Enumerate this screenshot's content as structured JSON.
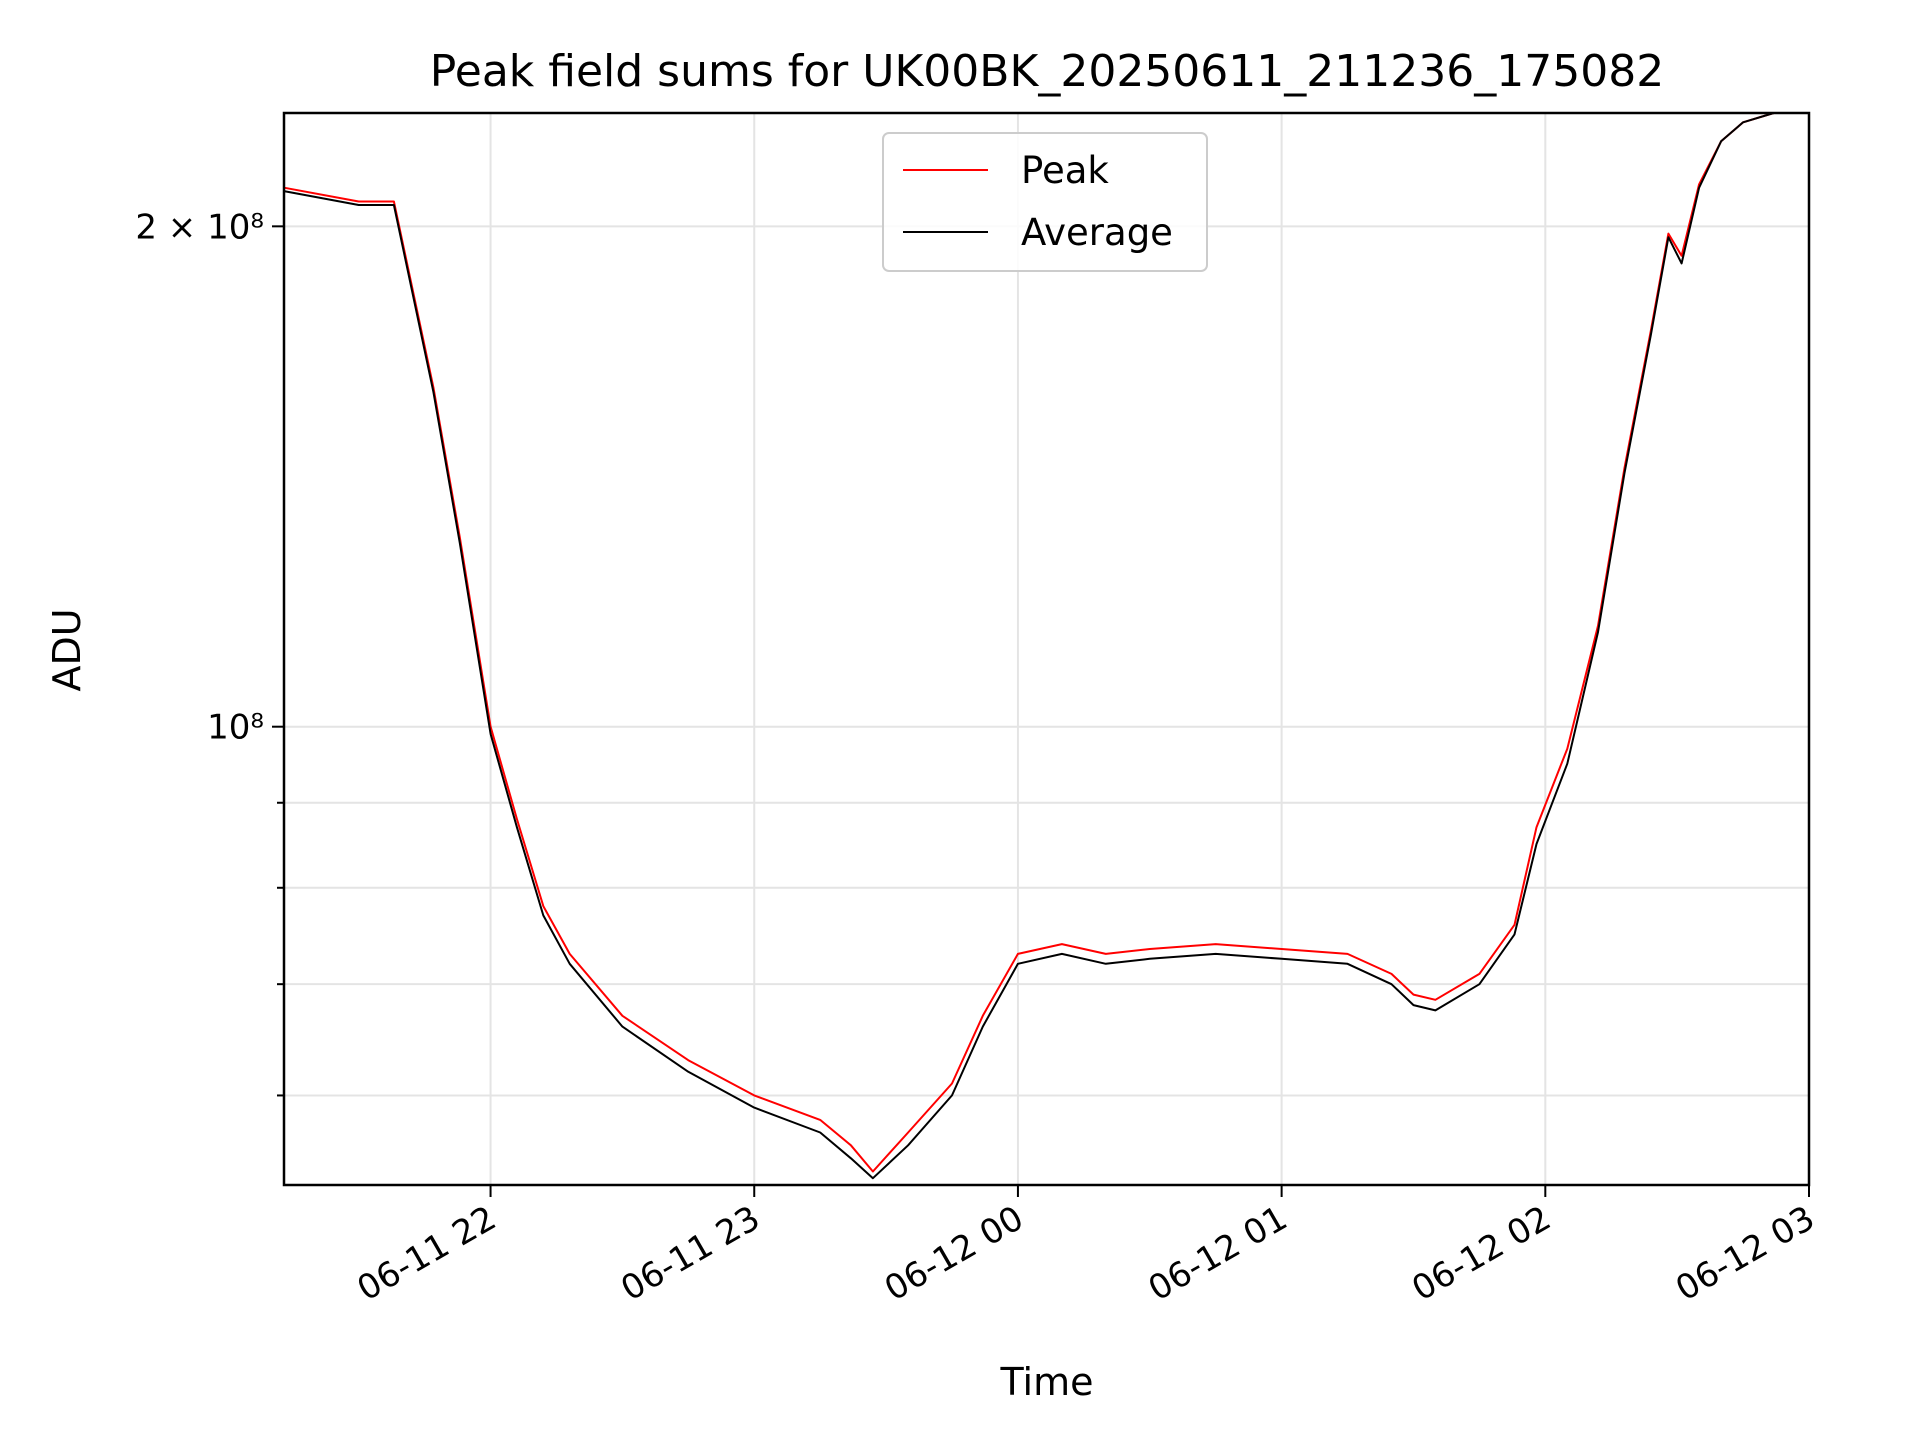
{
  "chart_data": {
    "type": "line",
    "title": "Peak field sums for UK00BK_20250611_211236_175082",
    "xlabel": "Time",
    "ylabel": "ADU",
    "yscale": "log",
    "xlim": [
      "2025-06-11 21:13",
      "2025-06-12 03:00"
    ],
    "ylim": [
      53000000,
      234000000
    ],
    "grid": true,
    "legend_position": "top-center",
    "x_ticks": [
      {
        "value": "2025-06-11 22:00",
        "label": "06-11 22"
      },
      {
        "value": "2025-06-11 23:00",
        "label": "06-11 23"
      },
      {
        "value": "2025-06-12 00:00",
        "label": "06-12 00"
      },
      {
        "value": "2025-06-12 01:00",
        "label": "06-12 01"
      },
      {
        "value": "2025-06-12 02:00",
        "label": "06-12 02"
      },
      {
        "value": "2025-06-12 03:00",
        "label": "06-12 03"
      }
    ],
    "y_ticks": [
      {
        "value": 200000000,
        "label": "2 × 10⁸"
      },
      {
        "value": 100000000,
        "label": "10⁸"
      }
    ],
    "y_minor_ticks": [
      60000000,
      70000000,
      80000000,
      90000000
    ],
    "series": [
      {
        "name": "Peak",
        "color": "#ff0000",
        "x": [
          "2025-06-11 21:13",
          "2025-06-11 21:30",
          "2025-06-11 21:38",
          "2025-06-11 21:47",
          "2025-06-11 21:53",
          "2025-06-11 22:00",
          "2025-06-11 22:06",
          "2025-06-11 22:12",
          "2025-06-11 22:18",
          "2025-06-11 22:30",
          "2025-06-11 22:45",
          "2025-06-11 23:00",
          "2025-06-11 23:15",
          "2025-06-11 23:22",
          "2025-06-11 23:27",
          "2025-06-11 23:35",
          "2025-06-11 23:45",
          "2025-06-11 23:52",
          "2025-06-12 00:00",
          "2025-06-12 00:10",
          "2025-06-12 00:20",
          "2025-06-12 00:30",
          "2025-06-12 00:45",
          "2025-06-12 01:00",
          "2025-06-12 01:15",
          "2025-06-12 01:25",
          "2025-06-12 01:30",
          "2025-06-12 01:35",
          "2025-06-12 01:45",
          "2025-06-12 01:53",
          "2025-06-12 01:58",
          "2025-06-12 02:05",
          "2025-06-12 02:12",
          "2025-06-12 02:18",
          "2025-06-12 02:24",
          "2025-06-12 02:28",
          "2025-06-12 02:31",
          "2025-06-12 02:35",
          "2025-06-12 02:40",
          "2025-06-12 02:45",
          "2025-06-12 02:52",
          "2025-06-12 03:00"
        ],
        "values": [
          211000000,
          207000000,
          207000000,
          160000000,
          130000000,
          100000000,
          88000000,
          78000000,
          73000000,
          67000000,
          63000000,
          60000000,
          58000000,
          56000000,
          54000000,
          57000000,
          61000000,
          67000000,
          73000000,
          74000000,
          73000000,
          73500000,
          74000000,
          73500000,
          73000000,
          71000000,
          69000000,
          68500000,
          71000000,
          76000000,
          87000000,
          97000000,
          115000000,
          143000000,
          173000000,
          198000000,
          192000000,
          212000000,
          225000000,
          231000000,
          234000000,
          234000000
        ]
      },
      {
        "name": "Average",
        "color": "#000000",
        "x": [
          "2025-06-11 21:13",
          "2025-06-11 21:30",
          "2025-06-11 21:38",
          "2025-06-11 21:47",
          "2025-06-11 21:53",
          "2025-06-11 22:00",
          "2025-06-11 22:06",
          "2025-06-11 22:12",
          "2025-06-11 22:18",
          "2025-06-11 22:30",
          "2025-06-11 22:45",
          "2025-06-11 23:00",
          "2025-06-11 23:15",
          "2025-06-11 23:22",
          "2025-06-11 23:27",
          "2025-06-11 23:35",
          "2025-06-11 23:45",
          "2025-06-11 23:52",
          "2025-06-12 00:00",
          "2025-06-12 00:10",
          "2025-06-12 00:20",
          "2025-06-12 00:30",
          "2025-06-12 00:45",
          "2025-06-12 01:00",
          "2025-06-12 01:15",
          "2025-06-12 01:25",
          "2025-06-12 01:30",
          "2025-06-12 01:35",
          "2025-06-12 01:45",
          "2025-06-12 01:53",
          "2025-06-12 01:58",
          "2025-06-12 02:05",
          "2025-06-12 02:12",
          "2025-06-12 02:18",
          "2025-06-12 02:24",
          "2025-06-12 02:28",
          "2025-06-12 02:31",
          "2025-06-12 02:35",
          "2025-06-12 02:40",
          "2025-06-12 02:45",
          "2025-06-12 02:52",
          "2025-06-12 03:00"
        ],
        "values": [
          210000000,
          206000000,
          206000000,
          159000000,
          129000000,
          99000000,
          87000000,
          77000000,
          72000000,
          66000000,
          62000000,
          59000000,
          57000000,
          55000000,
          53500000,
          56000000,
          60000000,
          66000000,
          72000000,
          73000000,
          72000000,
          72500000,
          73000000,
          72500000,
          72000000,
          70000000,
          68000000,
          67500000,
          70000000,
          75000000,
          85000000,
          95000000,
          114000000,
          142000000,
          172000000,
          197000000,
          190000000,
          211000000,
          225000000,
          231000000,
          234000000,
          234000000
        ]
      }
    ]
  }
}
